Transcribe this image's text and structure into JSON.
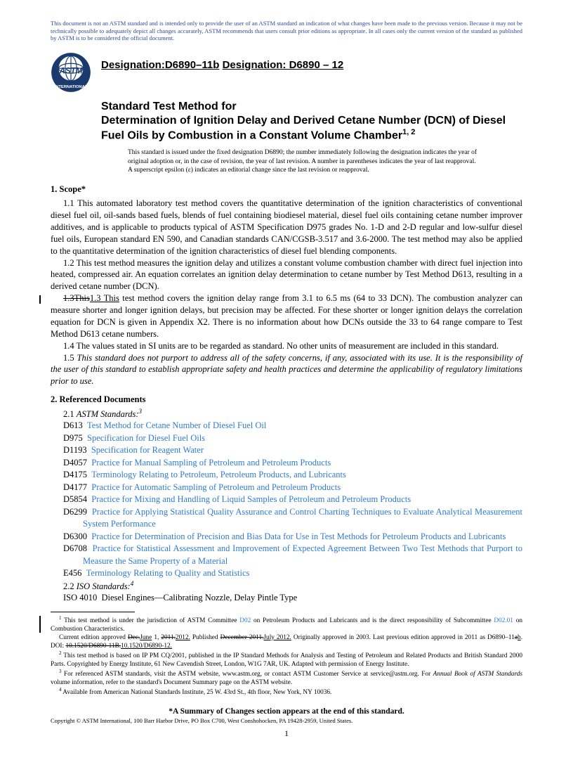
{
  "disclaimer": "This document is not an ASTM standard and is intended only to provide the user of an ASTM standard an indication of what changes have been made to the previous version. Because it may not be technically possible to adequately depict all changes accurately, ASTM recommends that users consult prior editions as appropriate. In all cases only the current version of the standard as published by ASTM is to be considered the official document.",
  "designation_label": "Designation:",
  "designation_old": "D6890–11b",
  "designation_new": "Designation: D6890 – 12",
  "title_line1": "Standard Test Method for",
  "title_line2": "Determination of Ignition Delay and Derived Cetane Number (DCN) of Diesel Fuel Oils by Combustion in a Constant Volume Chamber",
  "title_sup": "1, 2",
  "issuance": "This standard is issued under the fixed designation D6890; the number immediately following the designation indicates the year of original adoption or, in the case of revision, the year of last revision. A number in parentheses indicates the year of last reapproval. A superscript epsilon (ε) indicates an editorial change since the last revision or reapproval.",
  "scope_heading": "1. Scope*",
  "p11": "1.1 This automated laboratory test method covers the quantitative determination of the ignition characteristics of conventional diesel fuel oil, oil-sands based fuels, blends of fuel containing biodiesel material, diesel fuel oils containing cetane number improver additives, and is applicable to products typical of ASTM Specification D975 grades No. 1-D and 2-D regular and low-sulfur diesel fuel oils, European standard EN 590, and Canadian standards CAN/CGSB-3.517 and 3.6-2000. The test method may also be applied to the quantitative determination of the ignition characteristics of diesel fuel blending components.",
  "p12": "1.2 This test method measures the ignition delay and utilizes a constant volume combustion chamber with direct fuel injection into heated, compressed air. An equation correlates an ignition delay determination to cetane number by Test Method D613, resulting in a derived cetane number (DCN).",
  "p13_old": "1.3This",
  "p13_new": "1.3 This",
  "p13_rest": " test method covers the ignition delay range from 3.1 to 6.5 ms (64 to 33 DCN). The combustion analyzer can measure shorter and longer ignition delays, but precision may be affected. For these shorter or longer ignition delays the correlation equation for DCN is given in Appendix X2. There is no information about how DCNs outside the 33 to 64 range compare to Test Method D613 cetane numbers.",
  "p14": "1.4 The values stated in SI units are to be regarded as standard. No other units of measurement are included in this standard.",
  "p15": "1.5 This standard does not purport to address all of the safety concerns, if any, associated with its use. It is the responsibility of the user of this standard to establish appropriate safety and health practices and determine the applicability of regulatory limitations prior to use.",
  "refs_heading": "2. Referenced Documents",
  "refs_sub1": "2.1 ASTM Standards:",
  "refs_sub1_sup": "3",
  "astm_refs": [
    {
      "id": "D613",
      "title": "Test Method for Cetane Number of Diesel Fuel Oil"
    },
    {
      "id": "D975",
      "title": "Specification for Diesel Fuel Oils"
    },
    {
      "id": "D1193",
      "title": "Specification for Reagent Water"
    },
    {
      "id": "D4057",
      "title": "Practice for Manual Sampling of Petroleum and Petroleum Products"
    },
    {
      "id": "D4175",
      "title": "Terminology Relating to Petroleum, Petroleum Products, and Lubricants"
    },
    {
      "id": "D4177",
      "title": "Practice for Automatic Sampling of Petroleum and Petroleum Products"
    },
    {
      "id": "D5854",
      "title": "Practice for Mixing and Handling of Liquid Samples of Petroleum and Petroleum Products"
    },
    {
      "id": "D6299",
      "title": "Practice for Applying Statistical Quality Assurance and Control Charting Techniques to Evaluate Analytical Measurement System Performance"
    },
    {
      "id": "D6300",
      "title": "Practice for Determination of Precision and Bias Data for Use in Test Methods for Petroleum Products and Lubricants"
    },
    {
      "id": "D6708",
      "title": "Practice for Statistical Assessment and Improvement of Expected Agreement Between Two Test Methods that Purport to Measure the Same Property of a Material"
    },
    {
      "id": "E456",
      "title": "Terminology Relating to Quality and Statistics"
    }
  ],
  "refs_sub2": "2.2 ISO Standards:",
  "refs_sub2_sup": "4",
  "iso_ref_id": "ISO 4010",
  "iso_ref_title": "Diesel Engines—Calibrating Nozzle, Delay Pintle Type",
  "fn1_a": " This test method is under the jurisdiction of ASTM Committee ",
  "fn1_link1": "D02",
  "fn1_b": " on Petroleum Products and Lubricants and is the direct responsibility of Subcommittee ",
  "fn1_link2": "D02.01",
  "fn1_c": " on Combustion Characteristics.",
  "fn1_line2_a": "Current edition approved ",
  "fn1_line2_old1": "Dec.",
  "fn1_line2_new1": "June",
  "fn1_line2_b": " 1, ",
  "fn1_line2_old2": "2011.",
  "fn1_line2_new2": "2012.",
  "fn1_line2_c": " Published ",
  "fn1_line2_old3": "December 2011.",
  "fn1_line2_new3": "July 2012.",
  "fn1_line2_d": " Originally approved in 2003. Last previous edition approved in 2011 as D6890–11",
  "fn1_line2_old4": "a",
  "fn1_line2_new4": "b",
  "fn1_line2_e": ". DOI: ",
  "fn1_line2_old5": "10.1520/D6890-11B.",
  "fn1_line2_new5": "10.1520/D6890-12.",
  "fn2": " This test method is based on IP PM CQ/2001, published in the IP Standard Methods for Analysis and Testing of Petroleum and Related Products and British Standard 2000 Parts. Copyrighted by Energy Institute, 61 New Cavendish Street, London, W1G 7AR, UK. Adapted with permission of Energy Institute.",
  "fn3_a": " For referenced ASTM standards, visit the ASTM website, www.astm.org, or contact ASTM Customer Service at service@astm.org. For ",
  "fn3_it": "Annual Book of ASTM Standards",
  "fn3_b": " volume information, refer to the standard's Document Summary page on the ASTM website.",
  "fn4": " Available from American National Standards Institute, 25 W. 43rd St., 4th floor, New York, NY 10036.",
  "change_note": "*A Summary of Changes section appears at the end of this standard.",
  "copyright": "Copyright © ASTM International, 100 Barr Harbor Drive, PO Box C700, West Conshohocken, PA 19428-2959, United States.",
  "page_num": "1",
  "colors": {
    "link": "#2e7bd6",
    "disclaimer": "#2e4a9e",
    "text": "#000000",
    "bg": "#ffffff"
  }
}
